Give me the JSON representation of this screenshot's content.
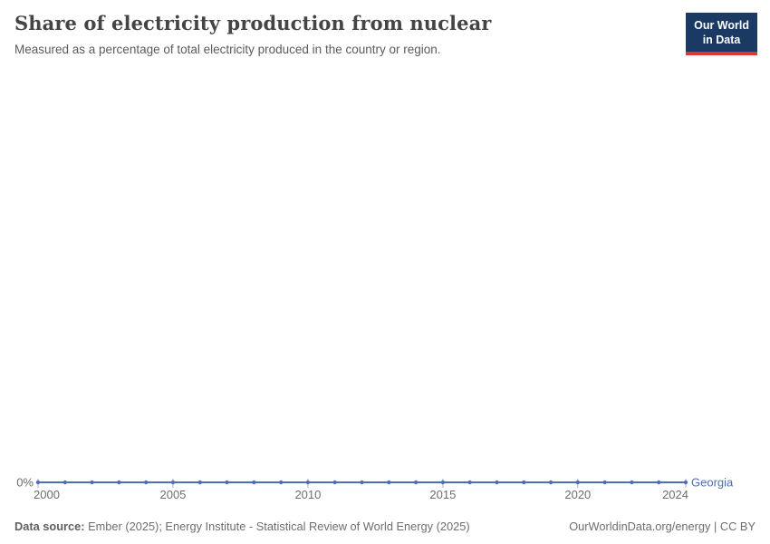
{
  "header": {
    "title": "Share of electricity production from nuclear",
    "subtitle": "Measured as a percentage of total electricity produced in the country or region.",
    "logo": {
      "line1": "Our World",
      "line2": "in Data"
    }
  },
  "chart_data": {
    "type": "line",
    "title": "Share of electricity production from nuclear",
    "subtitle": "Measured as a percentage of total electricity produced in the country or region.",
    "unit": "%",
    "x": [
      2000,
      2001,
      2002,
      2003,
      2004,
      2005,
      2006,
      2007,
      2008,
      2009,
      2010,
      2011,
      2012,
      2013,
      2014,
      2015,
      2016,
      2017,
      2018,
      2019,
      2020,
      2021,
      2022,
      2023,
      2024
    ],
    "series": [
      {
        "name": "Georgia",
        "color": "#4d6fb3",
        "values": [
          0,
          0,
          0,
          0,
          0,
          0,
          0,
          0,
          0,
          0,
          0,
          0,
          0,
          0,
          0,
          0,
          0,
          0,
          0,
          0,
          0,
          0,
          0,
          0,
          0
        ]
      }
    ],
    "x_ticks": [
      2000,
      2005,
      2010,
      2015,
      2020,
      2024
    ],
    "y_ticks": [
      {
        "value": 0,
        "label": "0%"
      }
    ],
    "xlabel": "",
    "ylabel": "",
    "grid": false,
    "legend_position": "end-of-line-label",
    "axis_color": "#a9b4c0",
    "tick_label_color": "#6e6e6e"
  },
  "footer": {
    "datasource_label": "Data source:",
    "datasource_text": " Ember (2025); Energy Institute - Statistical Review of World Energy (2025)",
    "link": "OurWorldinData.org/energy | CC BY"
  }
}
